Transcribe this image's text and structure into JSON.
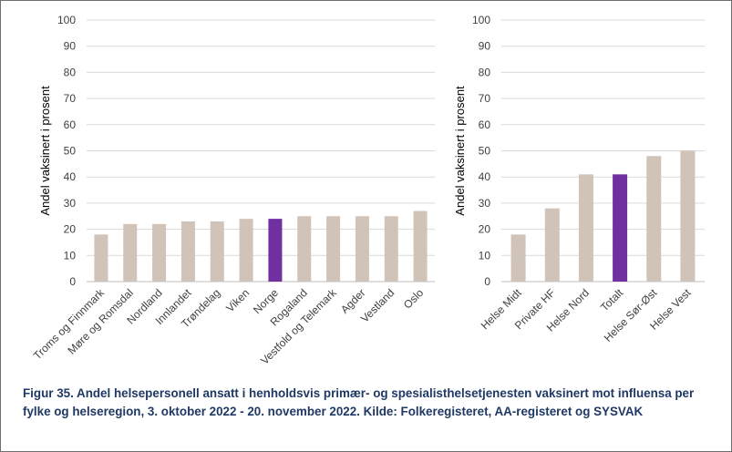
{
  "caption": "Figur 35. Andel helsepersonell ansatt i henholdsvis primær- og spesialisthelsetjenesten vaksinert mot influensa per fylke og helseregion, 3. oktober 2022 - 20. november 2022. Kilde: Folkeregisteret, AA-registeret og SYSVAK",
  "colors": {
    "bar": "#d0c4b8",
    "highlight": "#7030a0",
    "grid": "#d9d9d9",
    "axis": "#bfbfbf"
  },
  "chart_data": [
    {
      "type": "bar",
      "categories": [
        "Troms og Finnmark",
        "Møre og Romsdal",
        "Nordland",
        "Innlandet",
        "Trøndelag",
        "Viken",
        "Norge",
        "Rogaland",
        "Vestfold og Telemark",
        "Agder",
        "Vestland",
        "Oslo"
      ],
      "values": [
        18,
        22,
        22,
        23,
        23,
        24,
        24,
        25,
        25,
        25,
        25,
        27
      ],
      "highlight": "Norge",
      "ylabel": "Andel vaksinert i prosent",
      "ylim": [
        0,
        100
      ],
      "yticks": [
        "0",
        "10",
        "20",
        "30",
        "40",
        "50",
        "60",
        "70",
        "80",
        "90",
        "100"
      ],
      "grid": true,
      "legend": "none"
    },
    {
      "type": "bar",
      "categories": [
        "Helse Midt",
        "Private HF",
        "Helse Nord",
        "Totalt",
        "Helse Sør-Øst",
        "Helse Vest"
      ],
      "values": [
        18,
        28,
        41,
        41,
        48,
        50
      ],
      "highlight": "Totalt",
      "ylabel": "Andel vaksinert i prosent",
      "ylim": [
        0,
        100
      ],
      "yticks": [
        "0",
        "10",
        "20",
        "30",
        "40",
        "50",
        "60",
        "70",
        "80",
        "90",
        "100"
      ],
      "grid": true,
      "legend": "none"
    }
  ]
}
